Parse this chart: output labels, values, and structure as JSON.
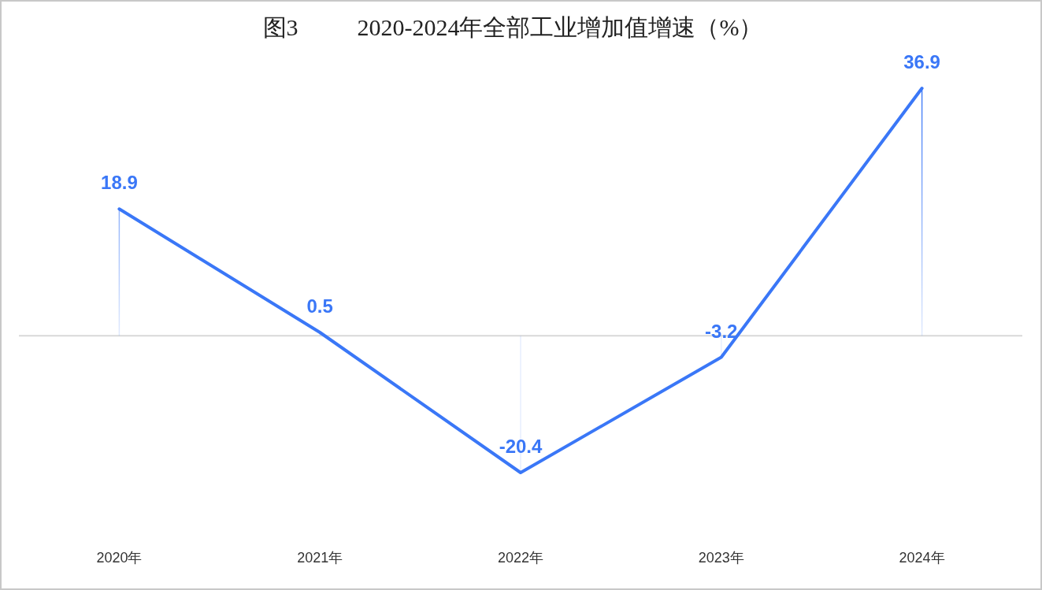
{
  "chart_data": {
    "type": "line",
    "title": "图3          2020-2024年全部工业增加值增速（%）",
    "categories": [
      "2020年",
      "2021年",
      "2022年",
      "2023年",
      "2024年"
    ],
    "values": [
      18.9,
      0.5,
      -20.4,
      -3.2,
      36.9
    ],
    "color": "#3a77f7",
    "data_labels": true
  }
}
